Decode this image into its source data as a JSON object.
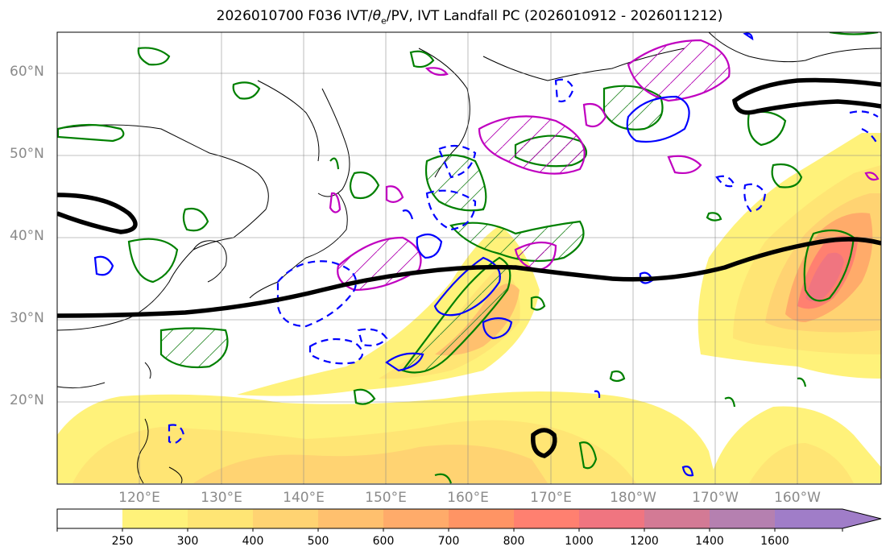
{
  "title": {
    "prefix": "2026010700 F036 IVT/",
    "theta": "θ",
    "sub": "e",
    "suffix": "/PV, IVT Landfall PC (2026010912 - 2026011212)"
  },
  "map": {
    "region": "North Pacific",
    "lat_labels": [
      "60°N",
      "50°N",
      "40°N",
      "30°N",
      "20°N"
    ],
    "lon_labels": [
      "120°E",
      "130°E",
      "140°E",
      "150°E",
      "160°E",
      "170°E",
      "180°W",
      "170°W",
      "160°W"
    ],
    "contour_colors": {
      "theta_e_pv": "#000000",
      "landfall_pc": "#008000",
      "positive": "#c000c0",
      "negative": "#0000ff"
    }
  },
  "colorbar": {
    "levels": [
      "250",
      "300",
      "400",
      "500",
      "600",
      "700",
      "800",
      "1000",
      "1200",
      "1400",
      "1600"
    ],
    "colors": [
      "#ffffff",
      "#fff27a",
      "#ffe574",
      "#ffd372",
      "#ffc06e",
      "#ffab6a",
      "#ff9464",
      "#ff8070",
      "#f07580",
      "#d37a95",
      "#b580b0",
      "#a07dc8"
    ],
    "extend": "max"
  }
}
